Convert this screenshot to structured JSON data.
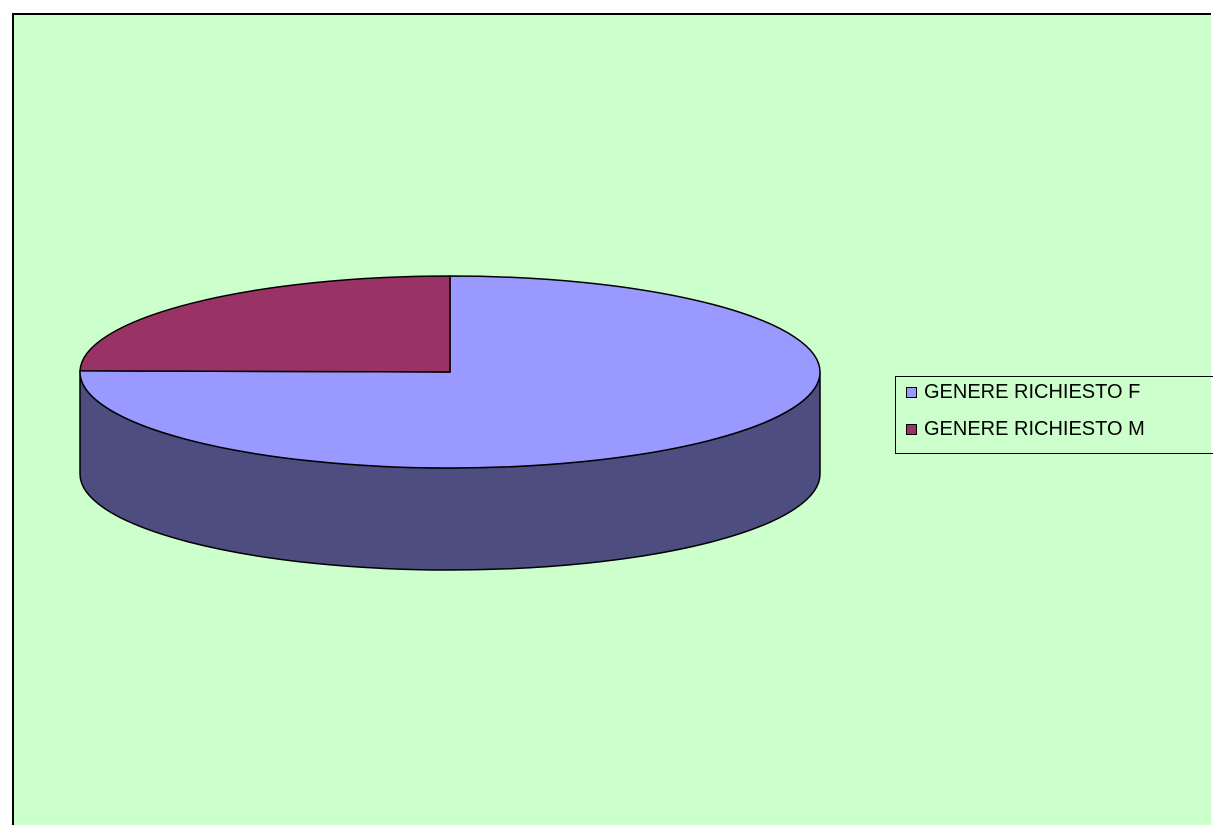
{
  "chart_data": {
    "type": "pie",
    "style": "3d",
    "title": "",
    "legend_position": "right",
    "series": [
      {
        "labels": [
          "GENERE RICHIESTO F",
          "GENERE RICHIESTO M"
        ],
        "values": [
          75.2,
          24.8
        ]
      }
    ],
    "colors": {
      "background": "#ccffcc",
      "slice_f": "#9999ff",
      "slice_m": "#993366",
      "side": "#4d4d80"
    }
  }
}
